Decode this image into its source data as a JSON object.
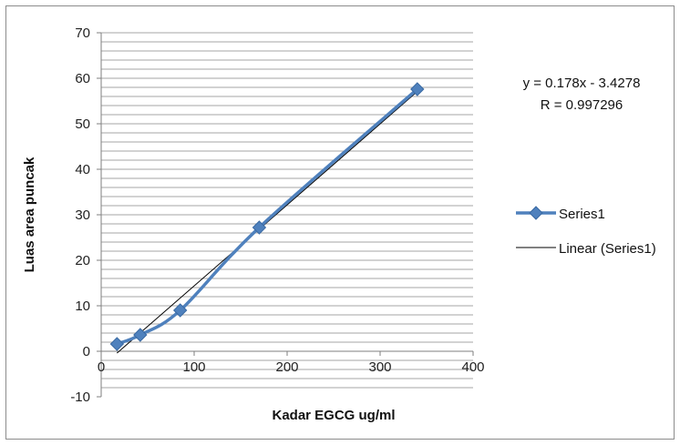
{
  "chart_data": {
    "type": "scatter",
    "title": "",
    "xlabel": "Kadar EGCG ug/ml",
    "ylabel": "Luas area puncak",
    "xlim": [
      0,
      400
    ],
    "ylim": [
      -10,
      70
    ],
    "x_ticks": [
      "0",
      "100",
      "200",
      "300",
      "400"
    ],
    "y_ticks": [
      "-10",
      "0",
      "10",
      "20",
      "30",
      "40",
      "50",
      "60",
      "70"
    ],
    "y_minor_step": 2,
    "grid": "horizontal",
    "legend_position": "right",
    "series": [
      {
        "name": "Series1",
        "marker": "diamond",
        "line": "smooth",
        "color": "#4f81bd",
        "x": [
          17,
          42,
          85,
          170,
          340
        ],
        "y": [
          1.6,
          3.6,
          9.0,
          27.2,
          57.6
        ]
      }
    ],
    "trendline": {
      "name": "Linear (Series1)",
      "color": "#000000",
      "slope": 0.178,
      "intercept": -3.4278,
      "x_range": [
        17,
        340
      ]
    },
    "annotations": {
      "equation": "y = 0.178x - 3.4278",
      "r_value": "R = 0.997296"
    }
  }
}
